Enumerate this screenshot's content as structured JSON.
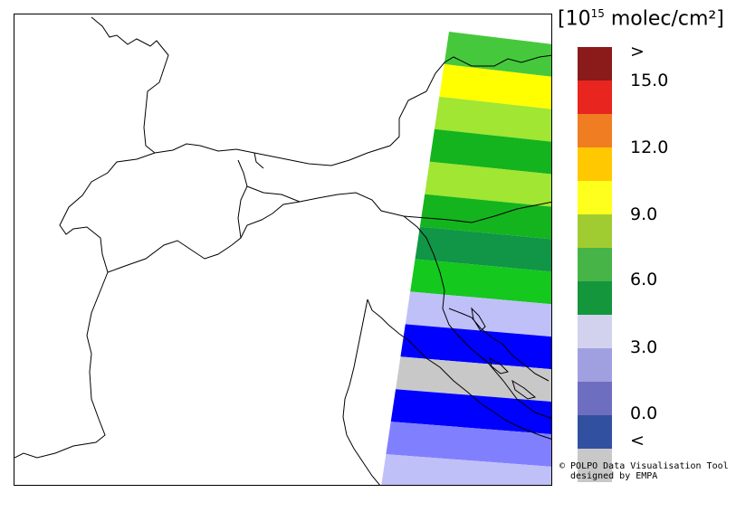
{
  "legend": {
    "unit_base": "[10",
    "unit_exp": "15",
    "unit_rest": " molec/cm²]",
    "labels": [
      ">",
      "15.0",
      "12.0",
      "9.0",
      "6.0",
      "3.0",
      "0.0",
      "<"
    ],
    "colors": [
      "#8b1a1a",
      "#e8251e",
      "#f07d22",
      "#ffc800",
      "#ffff1e",
      "#a0cc32",
      "#46b446",
      "#14963c",
      "#d2d2ee",
      "#a0a0e0",
      "#6e6ec0",
      "#3250a0",
      "#c8c8c8"
    ]
  },
  "credit": {
    "line1": "© POLPO Data Visualisation Tool",
    "line2": "designed by EMPA"
  },
  "swath_bands": [
    {
      "color": "#46c83c",
      "level": "6-7.5"
    },
    {
      "color": "#ffff00",
      "level": "9-10.5"
    },
    {
      "color": "#a0e632",
      "level": "7.5-9"
    },
    {
      "color": "#14b41e",
      "level": "4.5-6"
    },
    {
      "color": "#a0e632",
      "level": "7.5-9"
    },
    {
      "color": "#14b41e",
      "level": "4.5-6"
    },
    {
      "color": "#109646",
      "level": "4.5-6"
    },
    {
      "color": "#14c81e",
      "level": "4.5-6"
    },
    {
      "color": "#c0c0f8",
      "level": "3-4.5"
    },
    {
      "color": "#0000ff",
      "level": "0-1.5"
    },
    {
      "color": "#c8c8c8",
      "level": "<0"
    },
    {
      "color": "#0000ff",
      "level": "0-1.5"
    },
    {
      "color": "#8080ff",
      "level": "1.5-3"
    },
    {
      "color": "#c0c0f8",
      "level": "3-4.5"
    }
  ]
}
